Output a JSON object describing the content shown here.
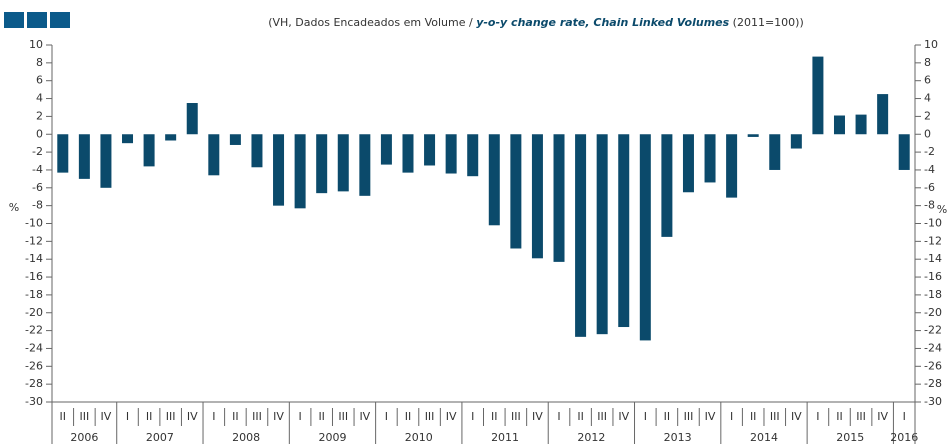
{
  "chart_data": {
    "type": "bar",
    "subtitle_pre": "(VH, Dados Encadeados em Volume / ",
    "subtitle_em": "y-o-y change rate, Chain Linked Volumes",
    "subtitle_post": " (2011=100))",
    "y_label": "%",
    "y2_label": "%",
    "color": "#0b4a6b",
    "groups": [
      {
        "year": "2006",
        "quarters": [
          "II",
          "III",
          "IV"
        ],
        "values": [
          -4.3,
          -5.0,
          -6.0
        ]
      },
      {
        "year": "2007",
        "quarters": [
          "I",
          "II",
          "III",
          "IV"
        ],
        "values": [
          -1.0,
          -3.6,
          -0.7,
          3.5
        ]
      },
      {
        "year": "2008",
        "quarters": [
          "I",
          "II",
          "III",
          "IV"
        ],
        "values": [
          -4.6,
          -1.2,
          -3.7,
          -8.0
        ]
      },
      {
        "year": "2009",
        "quarters": [
          "I",
          "II",
          "III",
          "IV"
        ],
        "values": [
          -8.3,
          -6.6,
          -6.4,
          -6.9
        ]
      },
      {
        "year": "2010",
        "quarters": [
          "I",
          "II",
          "III",
          "IV"
        ],
        "values": [
          -3.4,
          -4.3,
          -3.5,
          -4.4
        ]
      },
      {
        "year": "2011",
        "quarters": [
          "I",
          "II",
          "III",
          "IV"
        ],
        "values": [
          -4.7,
          -10.2,
          -12.8,
          -13.9
        ]
      },
      {
        "year": "2012",
        "quarters": [
          "I",
          "II",
          "III",
          "IV"
        ],
        "values": [
          -14.3,
          -22.7,
          -22.4,
          -21.6
        ]
      },
      {
        "year": "2013",
        "quarters": [
          "I",
          "II",
          "III",
          "IV"
        ],
        "values": [
          -23.1,
          -11.5,
          -6.5,
          -5.4
        ]
      },
      {
        "year": "2014",
        "quarters": [
          "I",
          "II",
          "III",
          "IV"
        ],
        "values": [
          -7.1,
          -0.3,
          -4.0,
          -1.6
        ]
      },
      {
        "year": "2015",
        "quarters": [
          "I",
          "II",
          "III",
          "IV"
        ],
        "values": [
          8.7,
          2.1,
          2.2,
          4.5
        ]
      },
      {
        "year": "2016",
        "quarters": [
          "I"
        ],
        "values": [
          -4.0
        ]
      }
    ],
    "ylim": [
      -30,
      10
    ],
    "yticks": [
      10,
      8,
      6,
      4,
      2,
      0,
      -2,
      -4,
      -6,
      -8,
      -10,
      -12,
      -14,
      -16,
      -18,
      -20,
      -22,
      -24,
      -26,
      -28,
      -30
    ],
    "y2lim": [
      -30,
      10
    ],
    "y2ticks": [
      10,
      8,
      6,
      4,
      2,
      0,
      -2,
      -4,
      -6,
      -8,
      -10,
      -12,
      -14,
      -16,
      -18,
      -20,
      -22,
      -24,
      -26,
      -28,
      -30
    ]
  }
}
